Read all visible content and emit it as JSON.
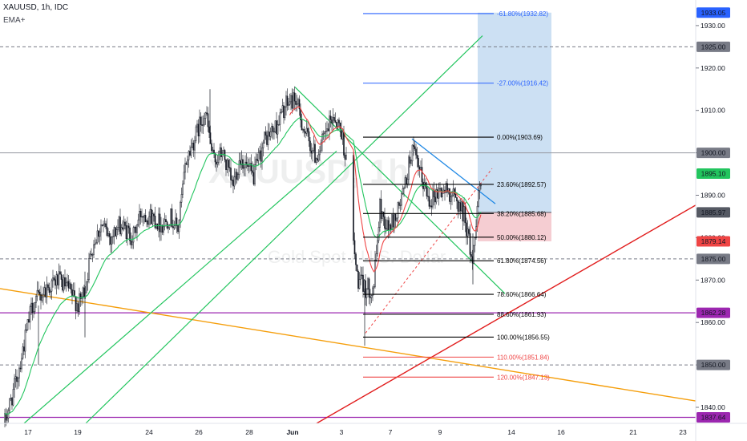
{
  "header": {
    "symbol": "XAUUSD, 1h, IDC",
    "indicator": "EMA+"
  },
  "watermark": {
    "symbol": "XAUUSD, 1h",
    "description": "Gold Spot / U.S. Dollar"
  },
  "chart_data": {
    "type": "candlestick",
    "title": "XAUUSD, 1h, IDC",
    "y_axis": {
      "ticks": [
        1840,
        1850,
        1860,
        1870,
        1880,
        1890,
        1900,
        1910,
        1920,
        1930,
        1940
      ],
      "tick_labels": [
        "1840.00",
        "1850.00",
        "1860.00",
        "1870.00",
        "1880.00",
        "1890.00",
        "1900.00",
        "1910.00",
        "1920.00",
        "1930.00",
        "1940.00"
      ],
      "range": [
        1834,
        1944
      ],
      "position": "right"
    },
    "x_axis": {
      "tick_labels": [
        "17",
        "19",
        "24",
        "26",
        "28",
        "Jun",
        "3",
        "7",
        "9",
        "14",
        "16",
        "21",
        "23"
      ]
    },
    "price_labels": [
      {
        "value": "1933.05",
        "color": "#2962ff"
      },
      {
        "value": "1925.00",
        "color": "#787b86"
      },
      {
        "value": "1900.00",
        "color": "#787b86"
      },
      {
        "value": "1895.10",
        "color": "#22c55e"
      },
      {
        "value": "1885.97",
        "color": "#555963"
      },
      {
        "value": "1879.14",
        "color": "#ef4444"
      },
      {
        "value": "1875.00",
        "color": "#787b86"
      },
      {
        "value": "1862.28",
        "color": "#9c27b0"
      },
      {
        "value": "1850.00",
        "color": "#787b86"
      },
      {
        "value": "1837.64",
        "color": "#9c27b0"
      }
    ],
    "fibonacci": [
      {
        "label": "-61.80%(1932.82)",
        "price": 1932.82,
        "color": "#2962ff"
      },
      {
        "label": "-27.00%(1916.42)",
        "price": 1916.42,
        "color": "#2962ff"
      },
      {
        "label": "0.00%(1903.69)",
        "price": 1903.69,
        "color": "#000000"
      },
      {
        "label": "23.60%(1892.57)",
        "price": 1892.57,
        "color": "#000000"
      },
      {
        "label": "38.20%(1885.68)",
        "price": 1885.68,
        "color": "#000000"
      },
      {
        "label": "50.00%(1880.12)",
        "price": 1880.12,
        "color": "#000000"
      },
      {
        "label": "61.80%(1874.56)",
        "price": 1874.56,
        "color": "#000000"
      },
      {
        "label": "78.60%(1866.64)",
        "price": 1866.64,
        "color": "#000000"
      },
      {
        "label": "88.60%(1861.93)",
        "price": 1861.93,
        "color": "#000000"
      },
      {
        "label": "100.00%(1856.55)",
        "price": 1856.55,
        "color": "#000000"
      },
      {
        "label": "110.00%(1851.84)",
        "price": 1851.84,
        "color": "#ef4444"
      },
      {
        "label": "120.00%(1847.13)",
        "price": 1847.13,
        "color": "#ef4444"
      }
    ],
    "horizontal_levels": [
      {
        "price": 1925.0,
        "style": "dashed",
        "color": "#787b86"
      },
      {
        "price": 1900.0,
        "style": "solid",
        "color": "#9598a1"
      },
      {
        "price": 1875.0,
        "style": "dashed",
        "color": "#787b86"
      },
      {
        "price": 1850.0,
        "style": "dashed",
        "color": "#787b86"
      },
      {
        "price": 1862.28,
        "style": "solid",
        "color": "#9c27b0"
      },
      {
        "price": 1837.64,
        "style": "solid",
        "color": "#9c27b0"
      }
    ],
    "position_tool": {
      "entry": 1885.97,
      "target": 1933.05,
      "stop": 1879.14,
      "target_color": "#bbd5ef",
      "stop_color": "#f3c4ca"
    },
    "ema_color": "#22c55e",
    "ma_color": "#ef4444",
    "up_color": "#131722",
    "down_color": "#131722"
  }
}
